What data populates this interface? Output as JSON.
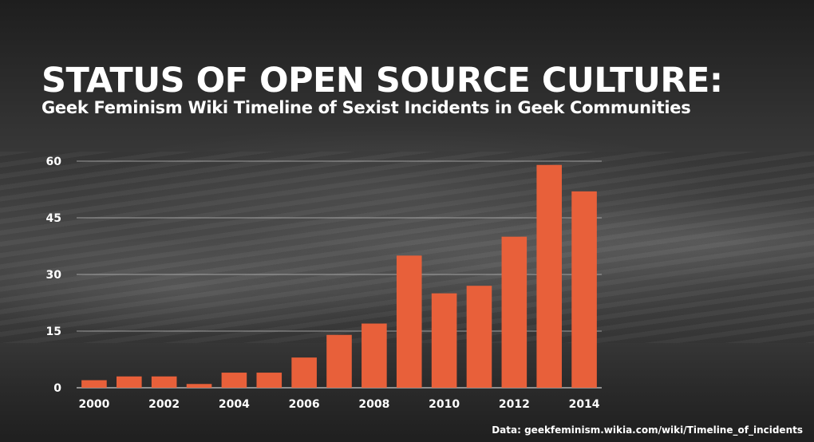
{
  "slide": {
    "title": "STATUS OF OPEN SOURCE CULTURE:",
    "subtitle": "Geek Feminism Wiki Timeline of Sexist Incidents in Geek Communities",
    "source": "Data: geekfeminism.wikia.com/wiki/Timeline_of_incidents"
  },
  "colors": {
    "bar": "#e8603a",
    "gridline": "#bdbdbd",
    "text": "#ffffff"
  },
  "chart_data": {
    "type": "bar",
    "categories": [
      "2000",
      "2001",
      "2002",
      "2003",
      "2004",
      "2005",
      "2006",
      "2007",
      "2008",
      "2009",
      "2010",
      "2011",
      "2012",
      "2013",
      "2014"
    ],
    "values": [
      2,
      3,
      3,
      1,
      4,
      4,
      8,
      14,
      17,
      35,
      25,
      27,
      40,
      59,
      52
    ],
    "x_tick_labels": [
      "2000",
      "2002",
      "2004",
      "2006",
      "2008",
      "2010",
      "2012",
      "2014"
    ],
    "y_ticks": [
      0,
      15,
      30,
      45,
      60
    ],
    "ylim": [
      0,
      60
    ],
    "grid": true,
    "legend": "none"
  }
}
